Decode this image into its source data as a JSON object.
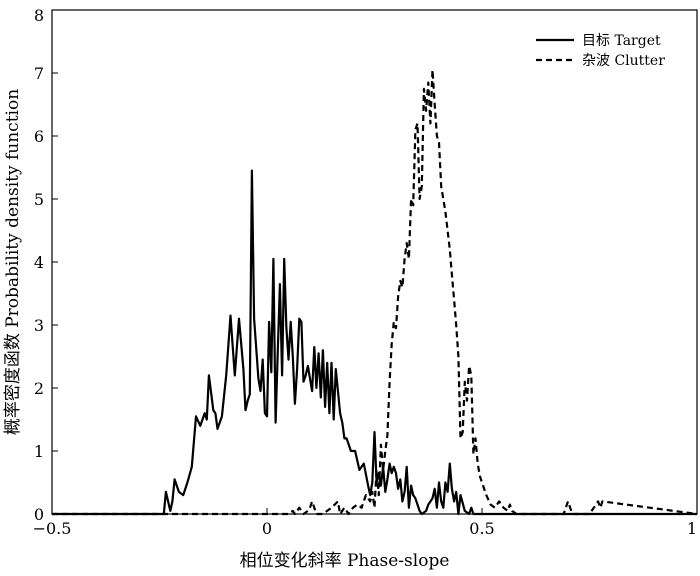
{
  "chart_data": {
    "type": "line",
    "xlabel": "相位变化斜率 Phase-slope",
    "ylabel": "概率密度函数 Probability density function",
    "xlim": [
      -0.5,
      1
    ],
    "ylim": [
      0,
      8
    ],
    "xticks": [
      -0.5,
      0,
      0.5,
      1
    ],
    "xtick_labels": [
      "−0.5",
      "0",
      "0.5",
      "1"
    ],
    "yticks": [
      0,
      1,
      2,
      3,
      4,
      5,
      6,
      7,
      8
    ],
    "ytick_labels": [
      "0",
      "1",
      "2",
      "3",
      "4",
      "5",
      "6",
      "7",
      "8"
    ],
    "grid": false,
    "legend_position": "top-right",
    "series": [
      {
        "name": "目标 Target",
        "style": "solid",
        "color": "#000000",
        "x": [
          -0.5,
          -0.24,
          -0.235,
          -0.225,
          -0.22,
          -0.215,
          -0.205,
          -0.195,
          -0.185,
          -0.175,
          -0.165,
          -0.155,
          -0.145,
          -0.14,
          -0.135,
          -0.125,
          -0.12,
          -0.115,
          -0.105,
          -0.095,
          -0.085,
          -0.075,
          -0.065,
          -0.055,
          -0.05,
          -0.045,
          -0.04,
          -0.035,
          -0.03,
          -0.02,
          -0.015,
          -0.01,
          -0.005,
          0.0,
          0.005,
          0.01,
          0.015,
          0.02,
          0.025,
          0.03,
          0.035,
          0.04,
          0.045,
          0.05,
          0.055,
          0.06,
          0.065,
          0.07,
          0.075,
          0.08,
          0.085,
          0.09,
          0.095,
          0.1,
          0.105,
          0.11,
          0.115,
          0.12,
          0.125,
          0.13,
          0.135,
          0.14,
          0.145,
          0.15,
          0.155,
          0.16,
          0.17,
          0.175,
          0.18,
          0.185,
          0.195,
          0.205,
          0.215,
          0.225,
          0.235,
          0.24,
          0.245,
          0.25,
          0.255,
          0.26,
          0.265,
          0.27,
          0.275,
          0.28,
          0.285,
          0.29,
          0.295,
          0.3,
          0.305,
          0.31,
          0.315,
          0.32,
          0.325,
          0.33,
          0.335,
          0.34,
          0.345,
          0.35,
          0.355,
          0.36,
          0.37,
          0.375,
          0.385,
          0.39,
          0.395,
          0.4,
          0.405,
          0.41,
          0.415,
          0.42,
          0.425,
          0.43,
          0.435,
          0.44,
          0.445,
          0.45,
          0.46,
          0.47,
          0.475,
          0.48,
          0.49,
          0.5,
          0.55,
          0.7,
          0.8,
          1.0
        ],
        "values": [
          0,
          0,
          0.35,
          0.05,
          0.2,
          0.55,
          0.35,
          0.3,
          0.5,
          0.75,
          1.55,
          1.4,
          1.6,
          1.5,
          2.2,
          1.65,
          1.6,
          1.35,
          1.55,
          2.2,
          3.15,
          2.2,
          3.1,
          2.3,
          1.65,
          1.8,
          1.9,
          5.45,
          3.1,
          2.15,
          1.95,
          2.45,
          1.6,
          1.55,
          3.05,
          2.25,
          4.05,
          1.45,
          2.6,
          3.65,
          2.2,
          4.05,
          2.95,
          2.45,
          3.05,
          2.5,
          1.75,
          2.3,
          3.1,
          3.05,
          2.1,
          2.2,
          2.35,
          2.15,
          1.95,
          2.65,
          2.0,
          2.55,
          1.85,
          2.6,
          1.7,
          2.4,
          1.6,
          2.4,
          1.5,
          2.3,
          1.6,
          1.45,
          1.2,
          1.2,
          1.0,
          1.0,
          0.7,
          0.8,
          0.45,
          0.3,
          0.5,
          1.3,
          0.5,
          0.65,
          0.45,
          0.75,
          0.35,
          0.55,
          0.8,
          0.65,
          0.75,
          0.65,
          0.4,
          0.55,
          0.2,
          0.35,
          0.75,
          0.1,
          0.45,
          0.3,
          0.25,
          0.15,
          0.05,
          0.0,
          0.05,
          0.15,
          0.25,
          0.4,
          0.1,
          0.5,
          0.2,
          0.1,
          0.5,
          0.35,
          0.8,
          0.4,
          0.2,
          0.35,
          0.0,
          0.3,
          0.05,
          0.0,
          0.1,
          0.0,
          0.0,
          0.0,
          0.0,
          0.0,
          0.0,
          0.0
        ]
      },
      {
        "name": "杂波 Clutter",
        "style": "dashed",
        "color": "#000000",
        "x": [
          -0.5,
          0.05,
          0.06,
          0.065,
          0.075,
          0.085,
          0.095,
          0.1,
          0.105,
          0.11,
          0.115,
          0.13,
          0.15,
          0.165,
          0.17,
          0.18,
          0.19,
          0.2,
          0.21,
          0.22,
          0.23,
          0.24,
          0.245,
          0.25,
          0.255,
          0.26,
          0.265,
          0.27,
          0.275,
          0.28,
          0.285,
          0.29,
          0.295,
          0.3,
          0.305,
          0.31,
          0.315,
          0.32,
          0.325,
          0.33,
          0.335,
          0.34,
          0.345,
          0.35,
          0.355,
          0.36,
          0.365,
          0.37,
          0.375,
          0.38,
          0.385,
          0.39,
          0.395,
          0.4,
          0.405,
          0.41,
          0.415,
          0.42,
          0.425,
          0.43,
          0.435,
          0.44,
          0.445,
          0.45,
          0.455,
          0.46,
          0.465,
          0.47,
          0.475,
          0.48,
          0.485,
          0.49,
          0.495,
          0.5,
          0.51,
          0.52,
          0.53,
          0.54,
          0.55,
          0.56,
          0.565,
          0.57,
          0.58,
          0.6,
          0.65,
          0.69,
          0.695,
          0.7,
          0.71,
          0.72,
          0.75,
          0.76,
          0.77,
          0.775,
          0.78,
          1.0
        ],
        "values": [
          0,
          0,
          0.05,
          0.0,
          0.1,
          0.0,
          0.05,
          0.1,
          0.2,
          0.1,
          0.0,
          0.0,
          0.1,
          0.2,
          0.0,
          0.1,
          0.0,
          0.1,
          0.15,
          0.1,
          0.3,
          0.2,
          0.35,
          0.1,
          0.7,
          0.3,
          1.1,
          0.7,
          1.0,
          1.25,
          2.1,
          2.7,
          3.05,
          2.95,
          3.45,
          3.7,
          3.6,
          4.05,
          4.3,
          4.05,
          5.0,
          4.9,
          6.1,
          6.2,
          5.0,
          5.2,
          6.75,
          6.4,
          6.85,
          6.2,
          7.05,
          6.5,
          6.0,
          5.9,
          5.2,
          5.0,
          4.8,
          4.5,
          4.2,
          3.8,
          3.4,
          3.0,
          2.5,
          1.2,
          1.3,
          2.1,
          1.8,
          2.35,
          2.2,
          0.95,
          1.2,
          0.8,
          0.6,
          0.5,
          0.3,
          0.15,
          0.1,
          0.2,
          0.1,
          0.05,
          0.15,
          0.05,
          0.0,
          0.0,
          0.0,
          0.0,
          0.1,
          0.2,
          0.0,
          0.0,
          0.0,
          0.1,
          0.2,
          0.1,
          0.2,
          0.0
        ]
      }
    ]
  }
}
